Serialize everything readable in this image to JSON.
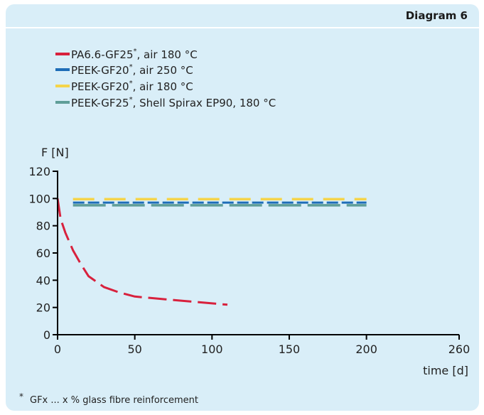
{
  "header": {
    "diagram_label": "Diagram 6"
  },
  "legend": [
    {
      "base": "PA6.6-GF25",
      "suffix": ", air 180 °C",
      "color": "#d8213d",
      "dash": "long"
    },
    {
      "base": "PEEK-GF20",
      "suffix": ", air 250 °C",
      "color": "#1e6db7",
      "dash": "short"
    },
    {
      "base": "PEEK-GF20",
      "suffix": ", air 180 °C",
      "color": "#f5d44a",
      "dash": "short"
    },
    {
      "base": "PEEK-GF25",
      "suffix": ", Shell Spirax EP90, 180 °C",
      "color": "#5f9e98",
      "dash": "short"
    }
  ],
  "footnote": {
    "marker": "*",
    "text": "GFx ... x % glass fibre reinforcement"
  },
  "chart_data": {
    "type": "line",
    "ylabel": "F [N]",
    "xlabel": "time [d]",
    "xlim": [
      0,
      260
    ],
    "ylim": [
      0,
      120
    ],
    "x_ticks": [
      0,
      50,
      100,
      150,
      200,
      260
    ],
    "y_ticks": [
      0,
      20,
      40,
      60,
      80,
      100,
      120
    ],
    "grid": false,
    "legend_position": "top-left",
    "series": [
      {
        "name": "PA6.6-GF25*, air 180 °C",
        "color": "#d8213d",
        "x": [
          0,
          2,
          5,
          10,
          15,
          20,
          30,
          40,
          50,
          60,
          70,
          80,
          90,
          100,
          110
        ],
        "y": [
          100,
          85,
          75,
          62,
          52,
          43,
          35,
          31,
          28,
          27,
          26,
          25,
          24,
          23,
          22
        ]
      },
      {
        "name": "PEEK-GF20*, air 250 °C",
        "color": "#1e6db7",
        "x": [
          10,
          200
        ],
        "y": [
          97,
          97
        ]
      },
      {
        "name": "PEEK-GF20*, air 180 °C",
        "color": "#f5d44a",
        "x": [
          10,
          200
        ],
        "y": [
          99.5,
          99.5
        ]
      },
      {
        "name": "PEEK-GF25*, Shell Spirax EP90, 180 °C",
        "color": "#5f9e98",
        "x": [
          10,
          200
        ],
        "y": [
          95,
          95
        ]
      }
    ]
  }
}
